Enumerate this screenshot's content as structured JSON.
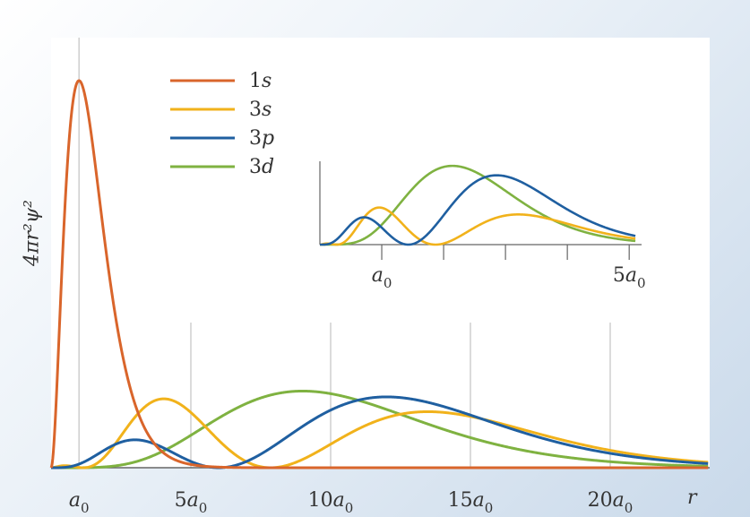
{
  "colors": {
    "s1": "#d9652b",
    "s3": "#f1b21b",
    "p3": "#1f5fa0",
    "d3": "#7fb241",
    "grid": "#cfcfcf",
    "axis": "#666666",
    "text": "#333333"
  },
  "chart_data": [
    {
      "type": "line",
      "title": "",
      "xlabel": "r",
      "ylabel": "4πr²ψ²",
      "xlim": [
        0,
        23.5
      ],
      "ylim": [
        0,
        1.0
      ],
      "x_ticks": [
        {
          "value": 1,
          "base": "a",
          "sub": "0"
        },
        {
          "value": 5,
          "base": "5a",
          "sub": "0"
        },
        {
          "value": 10,
          "base": "10a",
          "sub": "0"
        },
        {
          "value": 15,
          "base": "15a",
          "sub": "0"
        },
        {
          "value": 20,
          "base": "20a",
          "sub": "0"
        }
      ],
      "x_axis_end_label": "r",
      "grid": "vertical",
      "legend": {
        "position": "top-left",
        "entries": [
          {
            "key": "s1",
            "base": "1",
            "ital": "s"
          },
          {
            "key": "s3",
            "base": "3",
            "ital": "s"
          },
          {
            "key": "p3",
            "base": "3",
            "ital": "p"
          },
          {
            "key": "d3",
            "base": "3",
            "ital": "d"
          }
        ]
      },
      "series": [
        {
          "name": "1s",
          "key": "s1"
        },
        {
          "name": "3s",
          "key": "s3"
        },
        {
          "name": "3p",
          "key": "p3"
        },
        {
          "name": "3d",
          "key": "d3"
        }
      ]
    },
    {
      "type": "line",
      "title": "",
      "xlabel": "",
      "ylabel": "",
      "xlim": [
        0,
        5.2
      ],
      "ylim": [
        0,
        0.22
      ],
      "x_ticks": [
        {
          "value": 1,
          "base": "a",
          "sub": "0"
        },
        {
          "value": 5,
          "base": "5a",
          "sub": "0"
        }
      ],
      "minor_ticks": [
        2,
        3,
        4
      ],
      "series": [
        {
          "name": "3s",
          "key": "s3"
        },
        {
          "name": "3p",
          "key": "p3"
        },
        {
          "name": "3d",
          "key": "d3"
        }
      ]
    }
  ]
}
